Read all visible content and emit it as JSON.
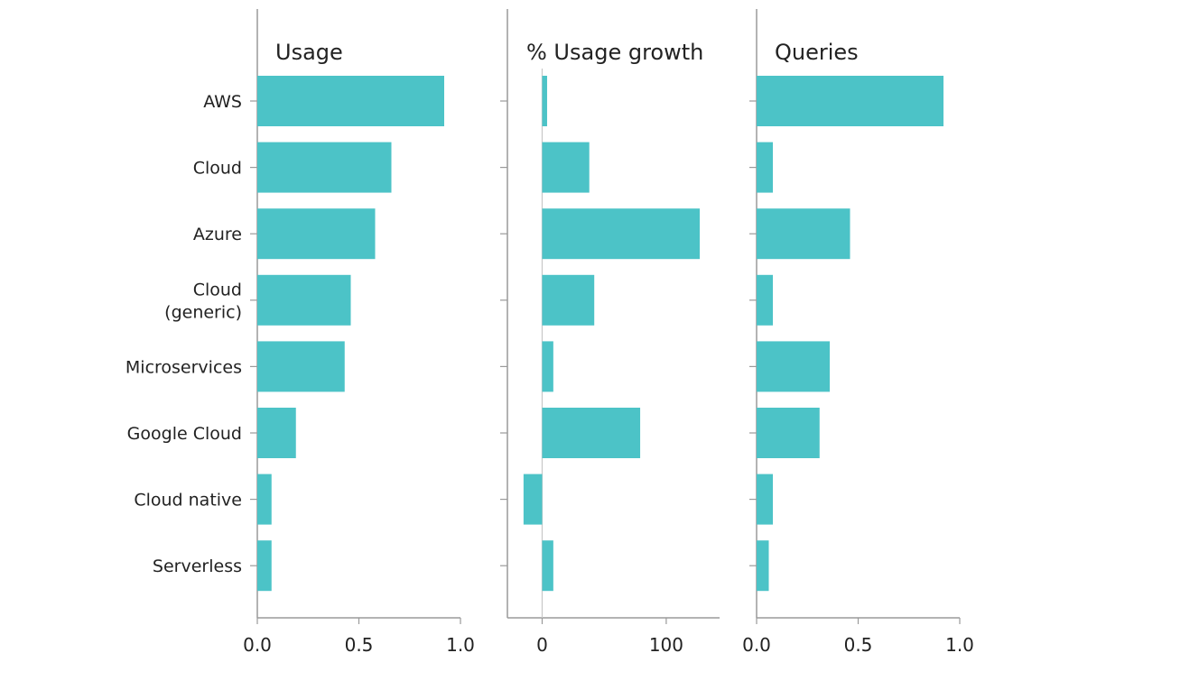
{
  "colors": {
    "bar": "#4cc3c7",
    "axis": "#9a9a9a",
    "text": "#222222"
  },
  "chart_data": {
    "type": "bar",
    "orientation": "horizontal",
    "categories": [
      "AWS",
      "Cloud",
      "Azure",
      "Cloud\n(generic)",
      "Microservices",
      "Google Cloud",
      "Cloud native",
      "Serverless"
    ],
    "panels": [
      {
        "title": "Usage",
        "values": [
          0.92,
          0.66,
          0.58,
          0.46,
          0.43,
          0.19,
          0.07,
          0.07
        ],
        "xlim": [
          0,
          1.0
        ],
        "ticks": [
          0.0,
          0.5,
          1.0
        ],
        "tick_labels": [
          "0.0",
          "0.5",
          "1.0"
        ]
      },
      {
        "title": "% Usage growth",
        "values": [
          4,
          38,
          127,
          42,
          9,
          79,
          -15,
          9
        ],
        "xlim": [
          -28,
          143
        ],
        "ticks": [
          0,
          100
        ],
        "tick_labels": [
          "0",
          "100"
        ]
      },
      {
        "title": "Queries",
        "values": [
          0.92,
          0.08,
          0.46,
          0.08,
          0.36,
          0.31,
          0.08,
          0.06
        ],
        "xlim": [
          0,
          1.0
        ],
        "ticks": [
          0.0,
          0.5,
          1.0
        ],
        "tick_labels": [
          "0.0",
          "0.5",
          "1.0"
        ]
      }
    ]
  }
}
